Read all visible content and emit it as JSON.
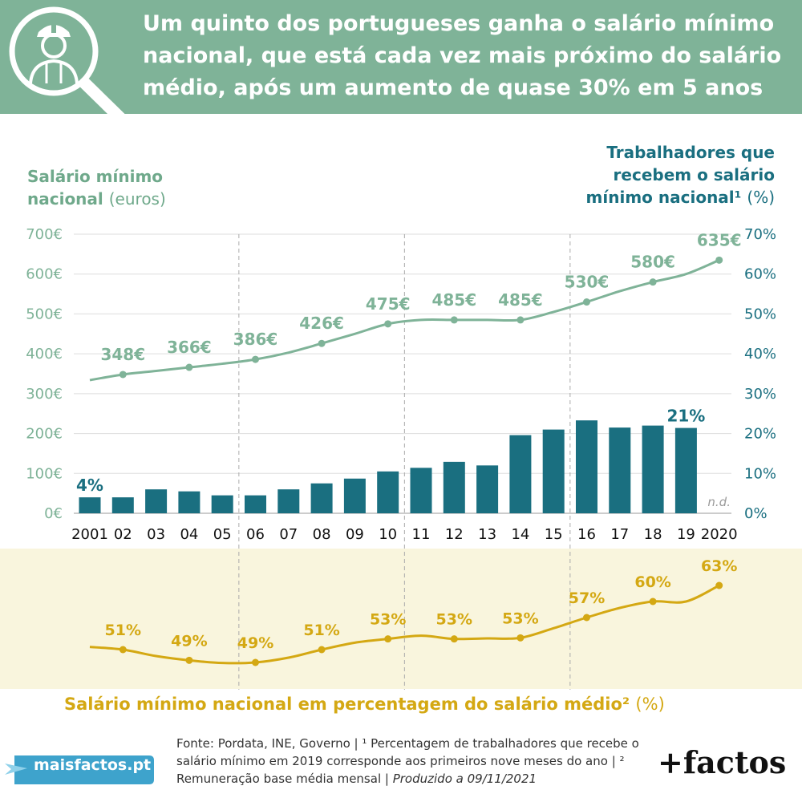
{
  "header": {
    "title": "Um quinto dos portugueses ganha o salário mínimo nacional, que está cada vez mais próximo do salário médio, após um aumento de quase 30% em 5 anos"
  },
  "colors": {
    "header_bg": "#7fb398",
    "min_wage_line": "#7fb398",
    "bars": "#1a6f80",
    "ratio_line": "#d4a813",
    "band_bg": "#f9f5dd"
  },
  "left_axis": {
    "title": "Salário mínimo nacional",
    "unit": "(euros)"
  },
  "right_axis": {
    "title": "Trabalhadores que recebem o salário mínimo nacional¹",
    "unit": "(%)"
  },
  "bottom_axis": {
    "title": "Salário mínimo nacional em percentagem do salário médio²",
    "unit": "(%)"
  },
  "chart_data": [
    {
      "type": "line",
      "series": [
        {
          "name": "Salário mínimo nacional (euros)",
          "x": [
            "2001",
            "02",
            "03",
            "04",
            "05",
            "06",
            "07",
            "08",
            "09",
            "10",
            "11",
            "12",
            "13",
            "14",
            "15",
            "16",
            "17",
            "18",
            "19",
            "2020"
          ],
          "values": [
            334,
            348,
            357,
            366,
            375,
            386,
            403,
            426,
            450,
            475,
            485,
            485,
            485,
            485,
            505,
            530,
            557,
            580,
            600,
            635
          ]
        }
      ],
      "point_labels": [
        {
          "x": "02",
          "label": "348€"
        },
        {
          "x": "04",
          "label": "366€"
        },
        {
          "x": "06",
          "label": "386€"
        },
        {
          "x": "08",
          "label": "426€"
        },
        {
          "x": "10",
          "label": "475€"
        },
        {
          "x": "12",
          "label": "485€"
        },
        {
          "x": "14",
          "label": "485€"
        },
        {
          "x": "16",
          "label": "530€"
        },
        {
          "x": "18",
          "label": "580€"
        },
        {
          "x": "2020",
          "label": "635€"
        }
      ],
      "ylim": [
        0,
        700
      ],
      "yticks": [
        "0€",
        "100€",
        "200€",
        "300€",
        "400€",
        "500€",
        "600€",
        "700€"
      ],
      "grid": true
    },
    {
      "type": "bar",
      "categories": [
        "2001",
        "02",
        "03",
        "04",
        "05",
        "06",
        "07",
        "08",
        "09",
        "10",
        "11",
        "12",
        "13",
        "14",
        "15",
        "16",
        "17",
        "18",
        "19",
        "2020"
      ],
      "series": [
        {
          "name": "Trabalhadores que recebem o salário mínimo nacional (%)",
          "values": [
            4.0,
            4.0,
            6.0,
            5.5,
            4.5,
            4.5,
            6.0,
            7.5,
            8.7,
            10.5,
            11.4,
            12.9,
            12.0,
            19.6,
            21.0,
            23.3,
            21.5,
            22.0,
            21.4,
            null
          ]
        }
      ],
      "bar_labels": [
        {
          "x": "2001",
          "label": "4%"
        },
        {
          "x": "19",
          "label": "21%"
        }
      ],
      "na_label": "n.d.",
      "ylim": [
        0,
        70
      ],
      "yticks": [
        "0%",
        "10%",
        "20%",
        "30%",
        "40%",
        "50%",
        "60%",
        "70%"
      ]
    },
    {
      "type": "line",
      "series": [
        {
          "name": "Salário mínimo nacional em percentagem do salário médio (%)",
          "x": [
            "2001",
            "02",
            "03",
            "04",
            "05",
            "06",
            "07",
            "08",
            "09",
            "10",
            "11",
            "12",
            "13",
            "14",
            "15",
            "16",
            "17",
            "18",
            "19",
            "2020"
          ],
          "values": [
            51.5,
            51.0,
            49.8,
            49.0,
            48.5,
            48.6,
            49.5,
            51.0,
            52.3,
            53.0,
            53.6,
            53.0,
            53.1,
            53.2,
            55.0,
            57.0,
            58.8,
            60.0,
            60.0,
            63.0
          ]
        }
      ],
      "point_labels": [
        {
          "x": "02",
          "label": "51%"
        },
        {
          "x": "04",
          "label": "49%"
        },
        {
          "x": "06",
          "label": "49%"
        },
        {
          "x": "08",
          "label": "51%"
        },
        {
          "x": "10",
          "label": "53%"
        },
        {
          "x": "12",
          "label": "53%"
        },
        {
          "x": "14",
          "label": "53%"
        },
        {
          "x": "16",
          "label": "57%"
        },
        {
          "x": "18",
          "label": "60%"
        },
        {
          "x": "2020",
          "label": "63%"
        }
      ]
    }
  ],
  "footer": {
    "source": "Fonte: Pordata, INE, Governo | ¹ Percentagem de trabalhadores que recebe o salário mínimo em 2019 corresponde aos primeiros nove meses do ano | ² Remuneração base média mensal |",
    "produced": "Produzido a 09/11/2021",
    "site": "maisfactos.pt",
    "brand": "+factos"
  }
}
